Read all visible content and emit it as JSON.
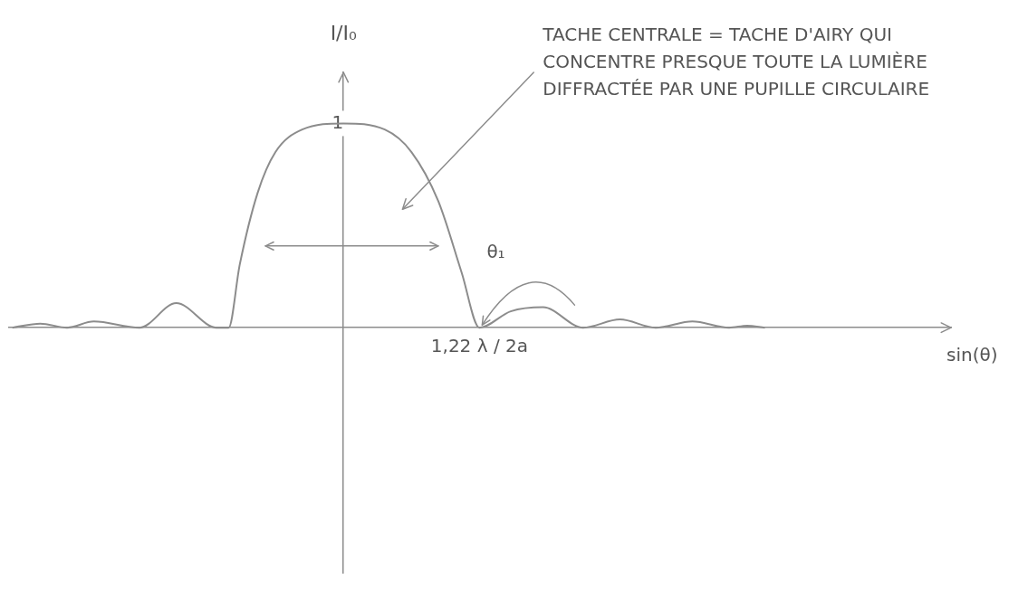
{
  "chart_data": {
    "type": "line",
    "y_label": "I/I₀",
    "x_label": "sin(θ)",
    "annotations": [
      {
        "text": "TACHE CENTRALE = TACHE D'AIRY QUI CONCENTRE PRESQUE TOUTE LA LUMIÈRE DIFFRACTÉE PAR UNE PUPILLE CIRCULAIRE"
      },
      {
        "text": "θ₁"
      }
    ],
    "x": [
      -2.97,
      -2.72,
      -2.48,
      -2.24,
      -1.83,
      -1.5,
      -1.14,
      -1.03,
      -0.93,
      -0.77,
      -0.61,
      -0.37,
      0,
      0.37,
      0.61,
      0.85,
      1.06,
      1.22,
      1.5,
      1.79,
      2.15,
      2.48,
      2.8,
      3.13,
      3.46,
      3.62,
      3.78
    ],
    "values": [
      0,
      0.02,
      0,
      0.03,
      0,
      0.12,
      0,
      0,
      0.31,
      0.66,
      0.86,
      0.97,
      1,
      0.97,
      0.86,
      0.62,
      0.27,
      0,
      0.08,
      0.1,
      0,
      0.04,
      0,
      0.03,
      0,
      0.01,
      0
    ],
    "color": "#8c8c8c",
    "xlim": [
      -3,
      5.45
    ],
    "ylim": [
      -1.2,
      1.25
    ],
    "xticks": [
      {
        "value": 1.22,
        "label": "1,22 λ / 2a"
      }
    ],
    "yticks": [
      1
    ],
    "grid": false
  }
}
